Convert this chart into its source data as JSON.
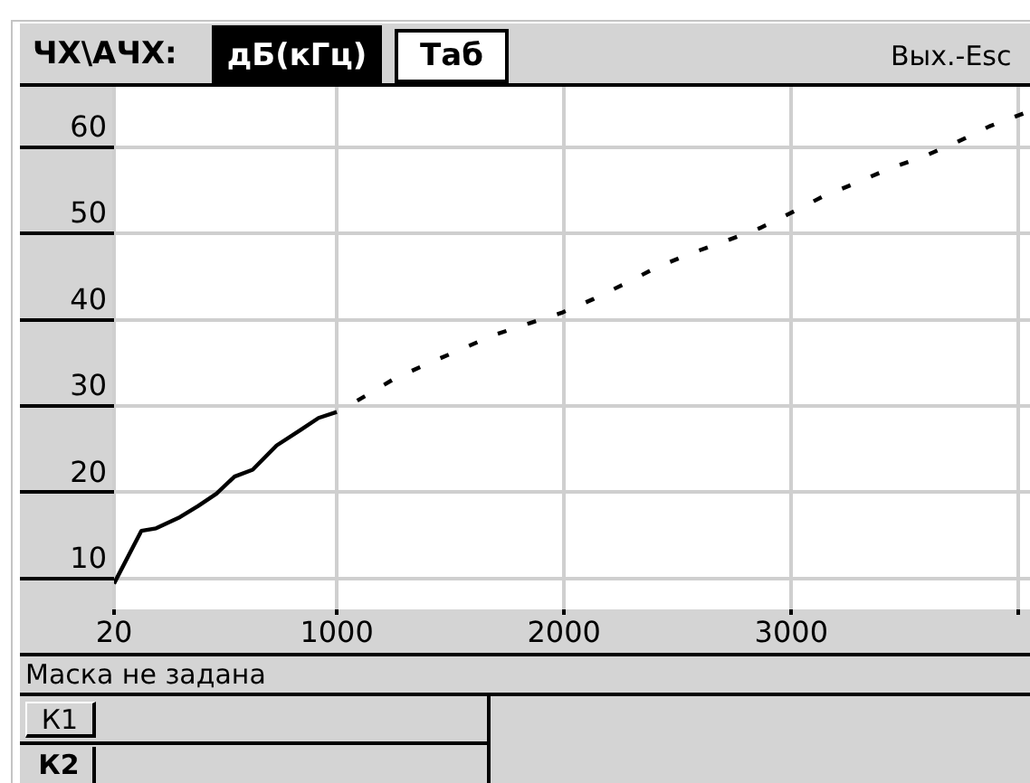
{
  "chart_data": {
    "type": "line",
    "title": "ЧХ\\АЧХ:",
    "annotations": [
      "дБ(кГц)",
      "Таб",
      "Вых.-Esc",
      "Маска не задана",
      "К1",
      "К2"
    ],
    "series": [
      {
        "color": "#000000",
        "line_style": "solid",
        "x": [
          20,
          140,
          205,
          310,
          390,
          470,
          550,
          630,
          735,
          840,
          920,
          1000
        ],
        "values": [
          9.4,
          15.5,
          15.8,
          17.1,
          18.4,
          19.8,
          21.8,
          22.6,
          25.4,
          27.2,
          28.6,
          29.3
        ]
      },
      {
        "color": "#000000",
        "line_style": "dashed",
        "x": [
          1090,
          1250,
          1400,
          1550,
          1690,
          1850,
          1990,
          2130,
          2270,
          2410,
          2570,
          2720,
          2860,
          3000,
          3140,
          3290,
          3430,
          3590,
          3730,
          3870,
          4020
        ],
        "values": [
          30.6,
          33.1,
          34.9,
          36.6,
          38.2,
          39.6,
          40.8,
          42.4,
          44.2,
          46.1,
          47.8,
          49.2,
          50.6,
          52.4,
          54.3,
          55.9,
          57.5,
          59.0,
          60.6,
          62.4,
          63.9
        ]
      }
    ],
    "xlim": [
      20,
      4050
    ],
    "xticks": [
      20,
      1000,
      2000,
      3000,
      {
        "value": 4000,
        "label": null
      }
    ],
    "ylim": [
      6.4,
      67
    ],
    "yticks": [
      10,
      20,
      30,
      40,
      50,
      60
    ],
    "grid": true,
    "marker": "none"
  }
}
